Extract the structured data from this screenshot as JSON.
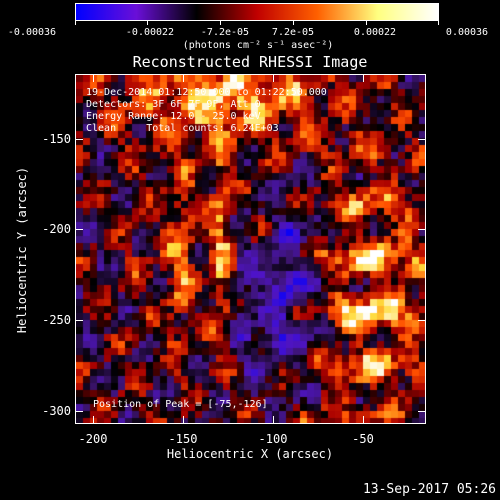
{
  "colorbar": {
    "tick_labels": [
      "-0.00036",
      "-0.00022",
      "-7.2e-05",
      "7.2e-05",
      "0.00022",
      "0.00036"
    ],
    "units": "(photons cm⁻² s⁻¹ asec⁻²)",
    "range": [
      -0.00036,
      0.00036
    ],
    "colors": [
      "#0000ff",
      "#6a0fd8",
      "#000000",
      "#c00000",
      "#ff6000",
      "#ffff80",
      "#ffffff"
    ]
  },
  "title": "Reconstructed RHESSI Image",
  "annotations": {
    "time": "19-Dec-2014 01:12:50.000 to 01:22:50.000",
    "detectors": "Detectors: 3F 6F 7F 9F, Att 0",
    "energy": "Energy Range: 12.0 - 25.0 keV",
    "clean": "Clean     Total counts: 6.24E+03",
    "peak": "Position of Peak = [-75,-126]"
  },
  "axes": {
    "xlabel": "Heliocentric X (arcsec)",
    "ylabel": "Heliocentric Y (arcsec)",
    "xticks": [
      "-200",
      "-150",
      "-100",
      "-50"
    ],
    "yticks": [
      "-150",
      "-200",
      "-250",
      "-300"
    ],
    "xrange": [
      -210,
      -15
    ],
    "yrange": [
      -305,
      -110
    ]
  },
  "footer": {
    "date": "13-Sep-2017 05:26"
  }
}
